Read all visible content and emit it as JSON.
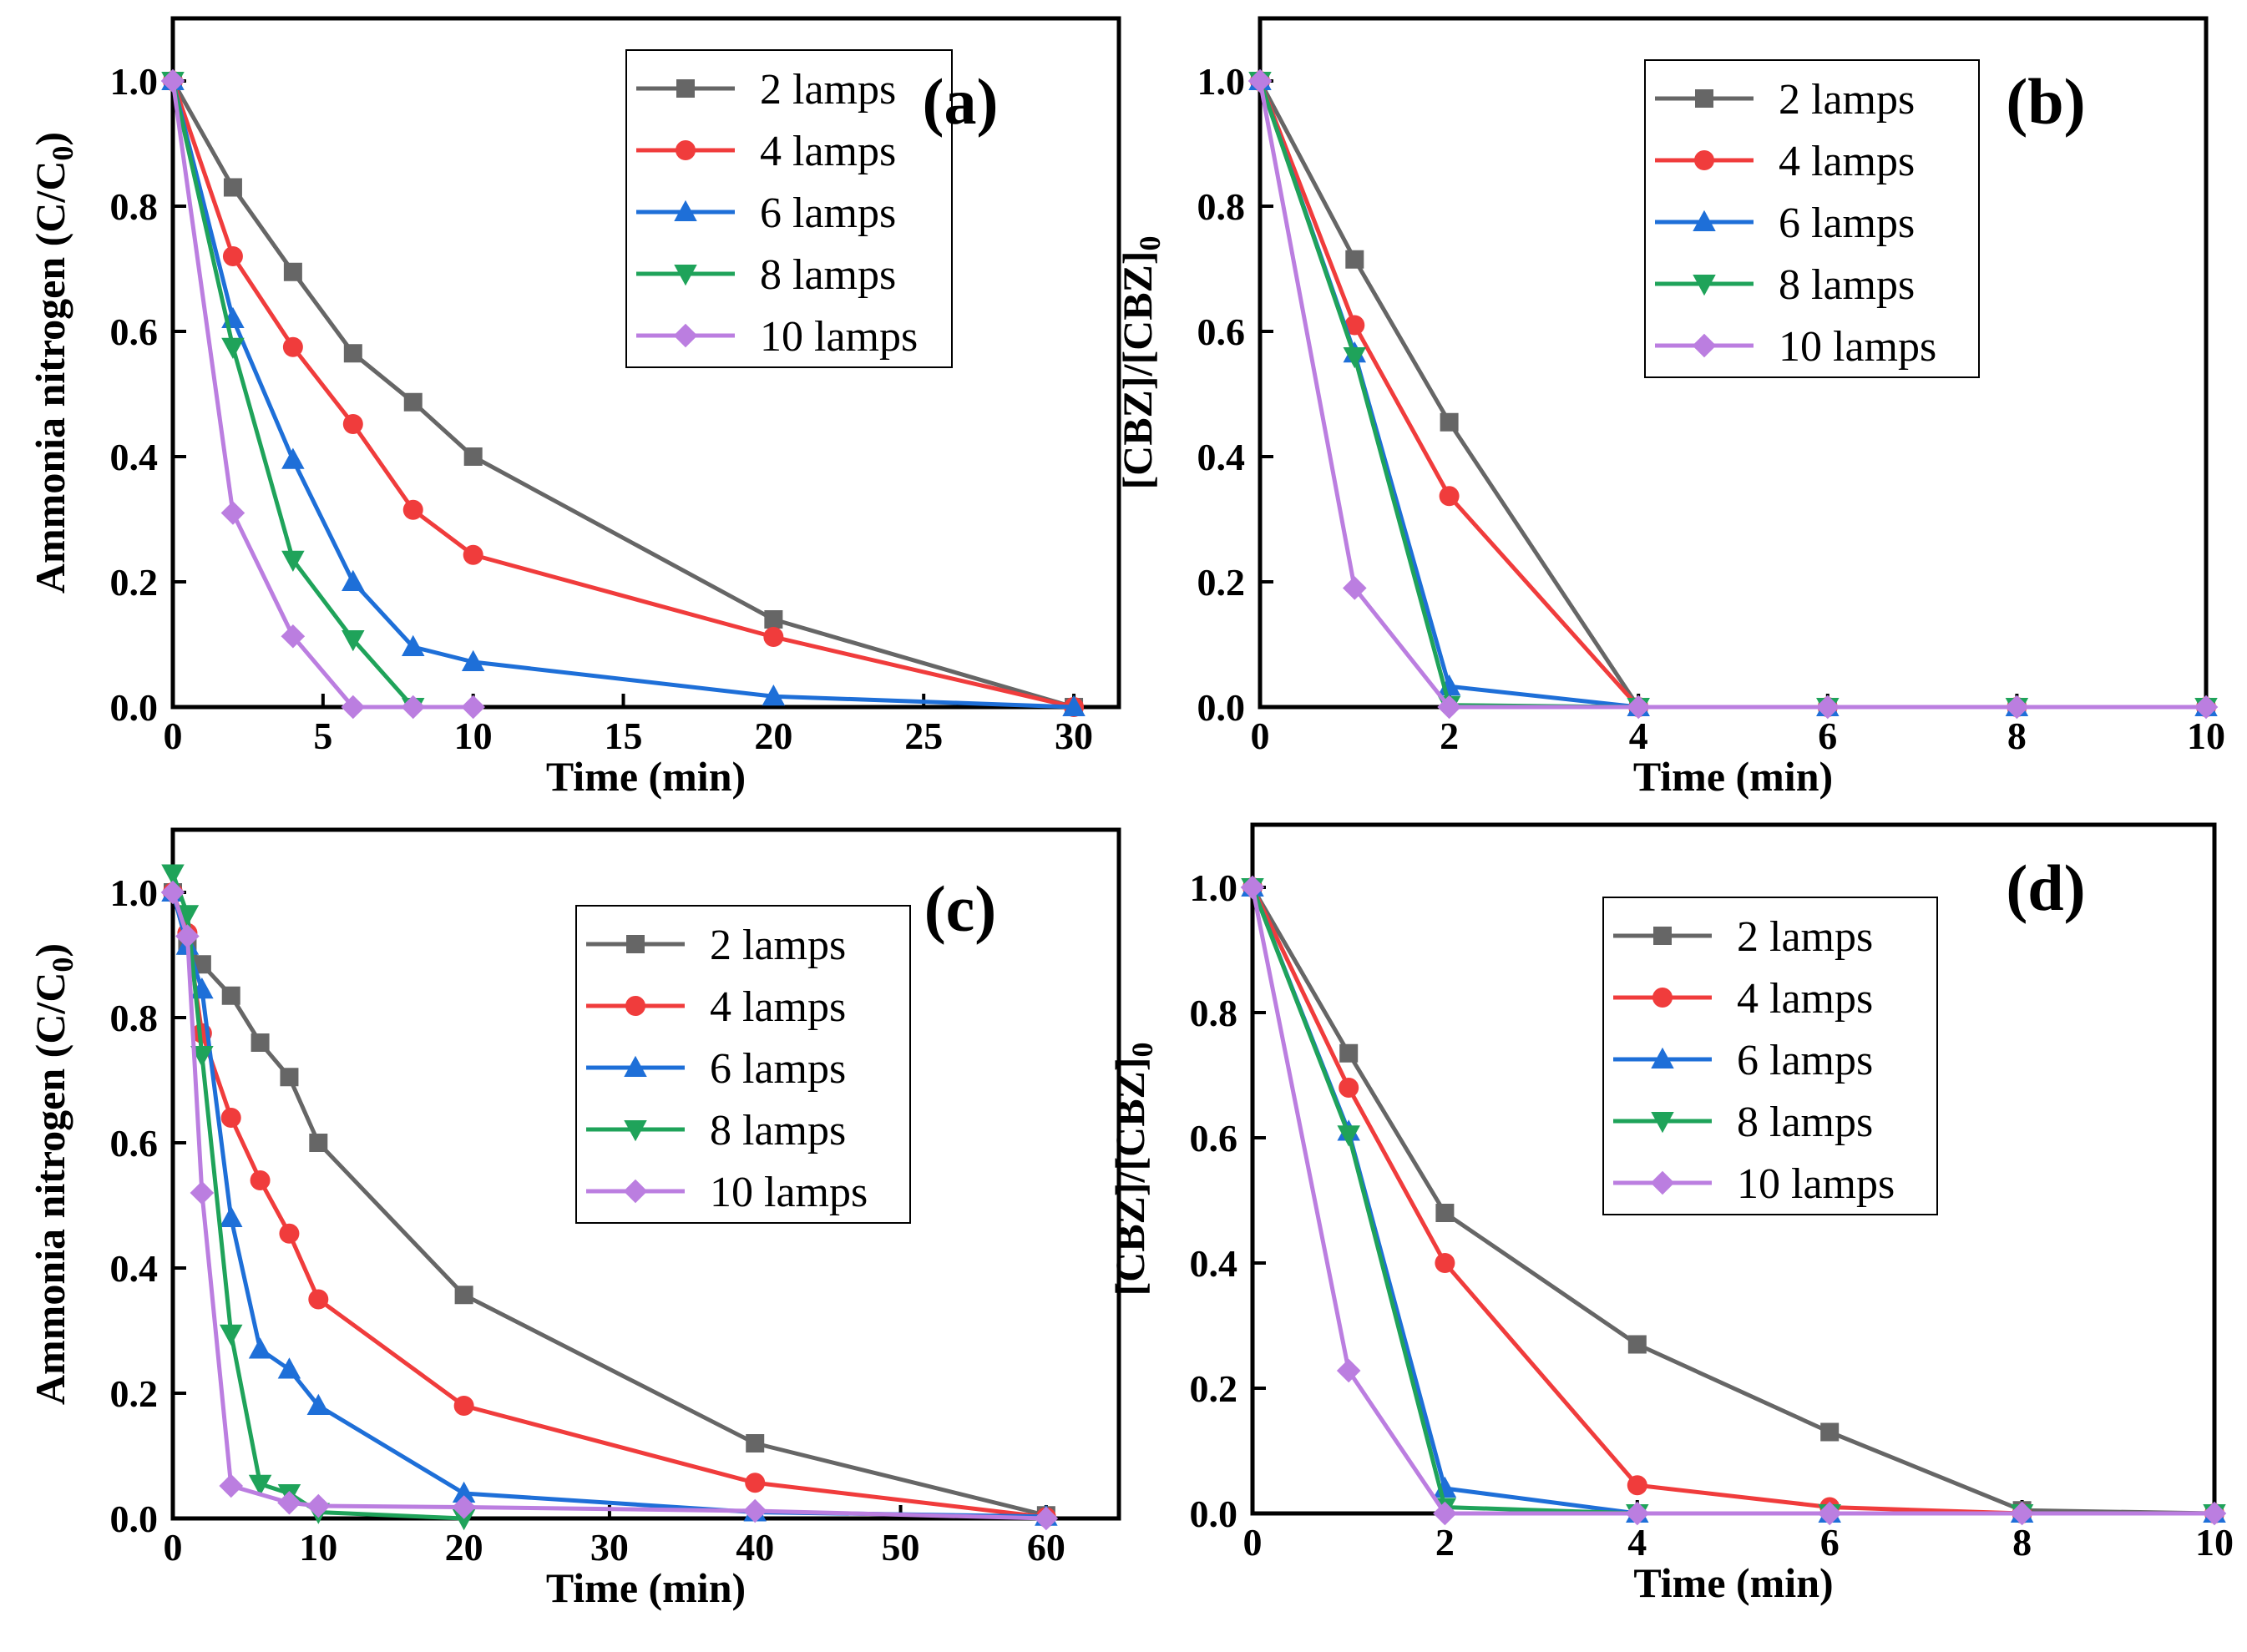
{
  "chart_data": [
    {
      "panel": "(a)",
      "type": "line",
      "xlabel": "Time (min)",
      "ylabel": "Ammonia nitrogen (C/C",
      "ylabel_sub": "0",
      "ylabel_close": ")",
      "xlim": [
        0,
        31.5
      ],
      "ylim": [
        0,
        1.1
      ],
      "xticks": [
        0,
        5,
        10,
        15,
        20,
        25,
        30
      ],
      "yticks": [
        0.0,
        0.2,
        0.4,
        0.6,
        0.8,
        1.0
      ],
      "yticks_text": [
        "0.0",
        "0.2",
        "0.4",
        "0.6",
        "0.8",
        "1.0"
      ],
      "legend_position": "top-right",
      "series": [
        {
          "name": "2 lamps",
          "marker": "square",
          "color": "#666666",
          "x": [
            0,
            2,
            4,
            6,
            8,
            10,
            20,
            30
          ],
          "y": [
            1.0,
            0.83,
            0.695,
            0.565,
            0.487,
            0.4,
            0.14,
            0.0
          ]
        },
        {
          "name": "4 lamps",
          "marker": "circle",
          "color": "#f03c3c",
          "x": [
            0,
            2,
            4,
            6,
            8,
            10,
            20,
            30
          ],
          "y": [
            1.0,
            0.72,
            0.575,
            0.452,
            0.315,
            0.243,
            0.112,
            0.0
          ]
        },
        {
          "name": "6 lamps",
          "marker": "triangle-up",
          "color": "#1e6fd8",
          "x": [
            0,
            2,
            4,
            6,
            8,
            10,
            20,
            30
          ],
          "y": [
            1.0,
            0.62,
            0.395,
            0.2,
            0.096,
            0.072,
            0.017,
            0.0
          ]
        },
        {
          "name": "8 lamps",
          "marker": "triangle-down",
          "color": "#1fa35a",
          "x": [
            0,
            2,
            4,
            6,
            8
          ],
          "y": [
            1.0,
            0.575,
            0.235,
            0.108,
            0.0
          ]
        },
        {
          "name": "10 lamps",
          "marker": "diamond",
          "color": "#bb7ee0",
          "x": [
            0,
            2,
            4,
            6,
            8,
            10
          ],
          "y": [
            1.0,
            0.31,
            0.113,
            0.0,
            0.0,
            0.0
          ]
        }
      ]
    },
    {
      "panel": "(b)",
      "type": "line",
      "xlabel": "Time (min)",
      "ylabel": "[CBZ]/[CBZ]",
      "ylabel_sub": "0",
      "ylabel_close": "",
      "xlim": [
        0,
        10
      ],
      "ylim": [
        0,
        1.1
      ],
      "xticks": [
        0,
        2,
        4,
        6,
        8,
        10
      ],
      "yticks": [
        0.0,
        0.2,
        0.4,
        0.6,
        0.8,
        1.0
      ],
      "yticks_text": [
        "0.0",
        "0.2",
        "0.4",
        "0.6",
        "0.8",
        "1.0"
      ],
      "legend_position": "top-right",
      "series": [
        {
          "name": "2 lamps",
          "marker": "square",
          "color": "#666666",
          "x": [
            0,
            1,
            2,
            4,
            6,
            8,
            10
          ],
          "y": [
            1.0,
            0.715,
            0.455,
            0.0,
            0.0,
            0.0,
            0.0
          ]
        },
        {
          "name": "4 lamps",
          "marker": "circle",
          "color": "#f03c3c",
          "x": [
            0,
            1,
            2,
            4,
            6,
            8,
            10
          ],
          "y": [
            1.0,
            0.61,
            0.337,
            0.0,
            0.0,
            0.0,
            0.0
          ]
        },
        {
          "name": "6 lamps",
          "marker": "triangle-up",
          "color": "#1e6fd8",
          "x": [
            0,
            1,
            2,
            4,
            6,
            8,
            10
          ],
          "y": [
            1.0,
            0.565,
            0.033,
            0.0,
            0.0,
            0.0,
            0.0
          ]
        },
        {
          "name": "8 lamps",
          "marker": "triangle-down",
          "color": "#1fa35a",
          "x": [
            0,
            1,
            2,
            4,
            6,
            8,
            10
          ],
          "y": [
            1.0,
            0.56,
            0.003,
            0.0,
            0.0,
            0.0,
            0.0
          ]
        },
        {
          "name": "10 lamps",
          "marker": "diamond",
          "color": "#bb7ee0",
          "x": [
            0,
            1,
            2,
            4,
            6,
            8,
            10
          ],
          "y": [
            1.0,
            0.19,
            0.0,
            0.0,
            0.0,
            0.0,
            0.0
          ]
        }
      ]
    },
    {
      "panel": "(c)",
      "type": "line",
      "xlabel": "Time (min)",
      "ylabel": "Ammonia nitrogen (C/C",
      "ylabel_sub": "0",
      "ylabel_close": ")",
      "xlim": [
        0,
        65
      ],
      "ylim": [
        0,
        1.1
      ],
      "xticks": [
        0,
        10,
        20,
        30,
        40,
        50,
        60
      ],
      "yticks": [
        0.0,
        0.2,
        0.4,
        0.6,
        0.8,
        1.0
      ],
      "yticks_text": [
        "0.0",
        "0.2",
        "0.4",
        "0.6",
        "0.8",
        "1.0"
      ],
      "legend_position": "top-right",
      "series": [
        {
          "name": "2 lamps",
          "marker": "square",
          "color": "#666666",
          "x": [
            0,
            1,
            2,
            4,
            6,
            8,
            10,
            20,
            40,
            60
          ],
          "y": [
            1.0,
            0.915,
            0.885,
            0.835,
            0.76,
            0.705,
            0.6,
            0.357,
            0.12,
            0.005
          ]
        },
        {
          "name": "4 lamps",
          "marker": "circle",
          "color": "#f03c3c",
          "x": [
            0,
            1,
            2,
            4,
            6,
            8,
            10,
            20,
            40,
            60
          ],
          "y": [
            1.0,
            0.935,
            0.775,
            0.64,
            0.54,
            0.455,
            0.35,
            0.18,
            0.057,
            0.002
          ]
        },
        {
          "name": "6 lamps",
          "marker": "triangle-up",
          "color": "#1e6fd8",
          "x": [
            0,
            1,
            2,
            4,
            6,
            8,
            10,
            20,
            40,
            60
          ],
          "y": [
            1.0,
            0.915,
            0.845,
            0.48,
            0.27,
            0.238,
            0.18,
            0.04,
            0.01,
            0.003
          ]
        },
        {
          "name": "8 lamps",
          "marker": "triangle-down",
          "color": "#1fa35a",
          "x": [
            0,
            1,
            2,
            4,
            6,
            8,
            10,
            20
          ],
          "y": [
            1.03,
            0.965,
            0.74,
            0.295,
            0.055,
            0.04,
            0.01,
            0.0
          ]
        },
        {
          "name": "10 lamps",
          "marker": "diamond",
          "color": "#bb7ee0",
          "x": [
            0,
            1,
            2,
            4,
            8,
            10,
            20,
            40,
            60
          ],
          "y": [
            1.0,
            0.93,
            0.52,
            0.052,
            0.025,
            0.02,
            0.018,
            0.012,
            0.0
          ]
        }
      ]
    },
    {
      "panel": "(d)",
      "type": "line",
      "xlabel": "Time (min)",
      "ylabel": "[CBZ]/[CBZ]",
      "ylabel_sub": "0",
      "ylabel_close": "",
      "xlim": [
        0,
        10
      ],
      "ylim": [
        0,
        1.1
      ],
      "xticks": [
        0,
        2,
        4,
        6,
        8,
        10
      ],
      "yticks": [
        0.0,
        0.2,
        0.4,
        0.6,
        0.8,
        1.0
      ],
      "yticks_text": [
        "0.0",
        "0.2",
        "0.4",
        "0.6",
        "0.8",
        "1.0"
      ],
      "legend_position": "top-right",
      "series": [
        {
          "name": "2 lamps",
          "marker": "square",
          "color": "#666666",
          "x": [
            0,
            1,
            2,
            4,
            6,
            8,
            10
          ],
          "y": [
            1.0,
            0.735,
            0.48,
            0.27,
            0.13,
            0.005,
            0.0
          ]
        },
        {
          "name": "4 lamps",
          "marker": "circle",
          "color": "#f03c3c",
          "x": [
            0,
            1,
            2,
            4,
            6,
            8,
            10
          ],
          "y": [
            1.0,
            0.68,
            0.4,
            0.045,
            0.01,
            0.0,
            0.0
          ]
        },
        {
          "name": "6 lamps",
          "marker": "triangle-up",
          "color": "#1e6fd8",
          "x": [
            0,
            1,
            2,
            4,
            6,
            8,
            10
          ],
          "y": [
            1.0,
            0.61,
            0.04,
            0.0,
            0.0,
            0.0,
            0.0
          ]
        },
        {
          "name": "8 lamps",
          "marker": "triangle-down",
          "color": "#1fa35a",
          "x": [
            0,
            1,
            2,
            4,
            6,
            8,
            10
          ],
          "y": [
            1.0,
            0.605,
            0.01,
            0.0,
            0.0,
            0.0,
            0.0
          ]
        },
        {
          "name": "10 lamps",
          "marker": "diamond",
          "color": "#bb7ee0",
          "x": [
            0,
            1,
            2,
            4,
            6,
            8,
            10
          ],
          "y": [
            1.0,
            0.228,
            0.0,
            0.0,
            0.0,
            0.0,
            0.0
          ]
        }
      ]
    }
  ]
}
